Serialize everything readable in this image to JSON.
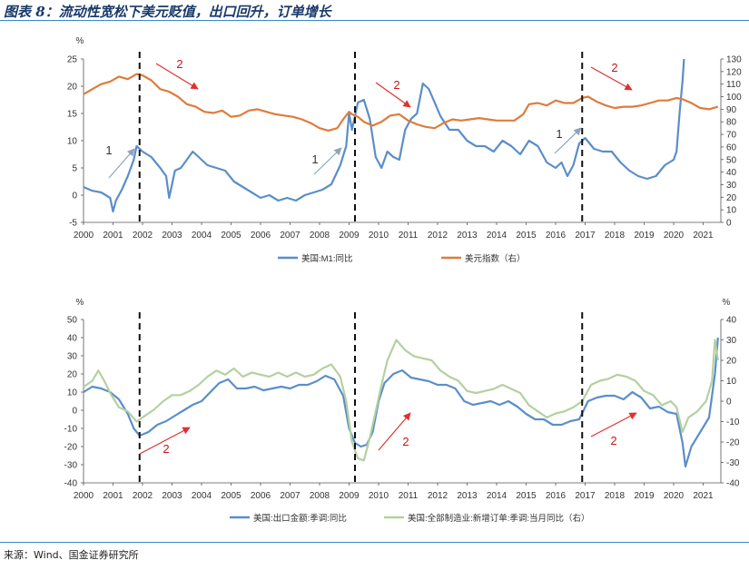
{
  "figure_title": "图表 8：流动性宽松下美元贬值，出口回升，订单增长",
  "source": "来源：Wind、国金证券研究所",
  "colors": {
    "blue": "#5b8ec9",
    "orange": "#e07b3a",
    "green": "#b5d0a0",
    "dash": "#111111",
    "arrow_gray": "#8ea3bd",
    "arrow_red": "#e03030",
    "rule": "#3a86c8"
  },
  "chart_data": [
    {
      "type": "line",
      "unit_left": "%",
      "x_ticks": [
        "2000",
        "2001",
        "2002",
        "2003",
        "2004",
        "2005",
        "2006",
        "2007",
        "2008",
        "2009",
        "2010",
        "2011",
        "2012",
        "2013",
        "2014",
        "2015",
        "2016",
        "2017",
        "2018",
        "2019",
        "2020",
        "2021"
      ],
      "xlim": [
        2000,
        2021.6
      ],
      "ylim_left": [
        -5,
        25
      ],
      "yticks_left": [
        "-5",
        "0",
        "5",
        "10",
        "15",
        "20",
        "25"
      ],
      "ylim_right": [
        0,
        130
      ],
      "yticks_right": [
        "0",
        "10",
        "20",
        "30",
        "40",
        "50",
        "60",
        "70",
        "80",
        "90",
        "100",
        "110",
        "120",
        "130"
      ],
      "series": [
        {
          "name": "美国:M1:同比",
          "axis": "left",
          "color": "#5b8ec9",
          "x": [
            2000.0,
            2000.3,
            2000.6,
            2000.9,
            2001.0,
            2001.1,
            2001.3,
            2001.5,
            2001.7,
            2001.8,
            2001.9,
            2002.0,
            2002.3,
            2002.6,
            2002.8,
            2002.9,
            2003.1,
            2003.3,
            2003.5,
            2003.7,
            2003.9,
            2004.2,
            2004.5,
            2004.8,
            2005.1,
            2005.4,
            2005.7,
            2006.0,
            2006.3,
            2006.6,
            2006.9,
            2007.2,
            2007.5,
            2007.8,
            2008.1,
            2008.4,
            2008.7,
            2008.9,
            2009.0,
            2009.1,
            2009.3,
            2009.5,
            2009.7,
            2009.9,
            2010.1,
            2010.3,
            2010.5,
            2010.7,
            2010.9,
            2011.1,
            2011.3,
            2011.5,
            2011.7,
            2011.9,
            2012.1,
            2012.4,
            2012.7,
            2013.0,
            2013.3,
            2013.6,
            2013.9,
            2014.2,
            2014.5,
            2014.8,
            2015.1,
            2015.4,
            2015.7,
            2016.0,
            2016.2,
            2016.4,
            2016.6,
            2016.8,
            2017.0,
            2017.3,
            2017.6,
            2017.9,
            2018.2,
            2018.5,
            2018.8,
            2019.1,
            2019.4,
            2019.7,
            2020.0,
            2020.1,
            2020.2,
            2020.3,
            2020.35
          ],
          "values": [
            1.5,
            0.8,
            0.5,
            -0.5,
            -3.0,
            -1.0,
            1.0,
            3.5,
            6.5,
            9.0,
            8.5,
            8.0,
            7.0,
            5.0,
            3.5,
            -0.5,
            4.5,
            5.0,
            6.5,
            8.0,
            7.0,
            5.5,
            5.0,
            4.5,
            2.5,
            1.5,
            0.5,
            -0.5,
            0.0,
            -1.0,
            -0.5,
            -1.0,
            0.0,
            0.5,
            1.0,
            2.0,
            5.5,
            9.0,
            15.0,
            12.0,
            17.0,
            17.5,
            14.0,
            7.0,
            5.0,
            8.0,
            7.0,
            6.5,
            12.0,
            14.0,
            15.0,
            20.5,
            19.5,
            17.0,
            14.5,
            12.0,
            12.0,
            10.0,
            9.0,
            9.0,
            8.0,
            10.0,
            9.0,
            7.5,
            10.0,
            9.0,
            6.0,
            5.0,
            6.0,
            3.5,
            5.5,
            9.5,
            10.5,
            8.5,
            8.0,
            8.0,
            6.0,
            4.5,
            3.5,
            3.0,
            3.5,
            5.5,
            6.5,
            8.0,
            15.0,
            21.0,
            25.0
          ]
        },
        {
          "name": "美元指数（右）",
          "axis": "right",
          "color": "#e07b3a",
          "x": [
            2000.0,
            2000.3,
            2000.6,
            2000.9,
            2001.2,
            2001.5,
            2001.8,
            2002.0,
            2002.3,
            2002.6,
            2002.9,
            2003.2,
            2003.5,
            2003.8,
            2004.1,
            2004.4,
            2004.7,
            2005.0,
            2005.3,
            2005.6,
            2005.9,
            2006.2,
            2006.5,
            2006.8,
            2007.1,
            2007.4,
            2007.7,
            2008.0,
            2008.3,
            2008.6,
            2008.8,
            2009.0,
            2009.1,
            2009.3,
            2009.5,
            2009.8,
            2010.1,
            2010.4,
            2010.7,
            2011.0,
            2011.3,
            2011.6,
            2011.9,
            2012.2,
            2012.5,
            2012.8,
            2013.1,
            2013.4,
            2013.7,
            2014.0,
            2014.3,
            2014.6,
            2014.9,
            2015.1,
            2015.4,
            2015.7,
            2016.0,
            2016.3,
            2016.6,
            2016.9,
            2017.1,
            2017.4,
            2017.7,
            2018.0,
            2018.3,
            2018.6,
            2018.9,
            2019.2,
            2019.5,
            2019.8,
            2020.1,
            2020.3,
            2020.6,
            2020.9,
            2021.2,
            2021.5
          ],
          "values": [
            102,
            106,
            110,
            112,
            116,
            114,
            118,
            117,
            113,
            106,
            104,
            100,
            94,
            92,
            88,
            87,
            89,
            84,
            85,
            89,
            90,
            88,
            86,
            85,
            84,
            82,
            79,
            75,
            73,
            75,
            82,
            88,
            86,
            84,
            80,
            77,
            80,
            85,
            86,
            81,
            78,
            76,
            75,
            79,
            82,
            81,
            82,
            83,
            82,
            81,
            81,
            81,
            86,
            94,
            95,
            93,
            97,
            95,
            95,
            99,
            100,
            96,
            93,
            91,
            92,
            92,
            93,
            95,
            97,
            97,
            99,
            98,
            95,
            91,
            90,
            92
          ]
        }
      ],
      "annotations": [
        {
          "label": "1",
          "kind": "gray-arrow"
        },
        {
          "label": "2",
          "kind": "red-arrow"
        },
        {
          "label": "1",
          "kind": "gray-arrow"
        },
        {
          "label": "2",
          "kind": "red-arrow"
        },
        {
          "label": "1",
          "kind": "gray-arrow"
        },
        {
          "label": "2",
          "kind": "red-arrow"
        }
      ],
      "vlines": [
        2001.9,
        2009.2,
        2016.9
      ],
      "legend": [
        "美国:M1:同比",
        "美元指数（右）"
      ]
    },
    {
      "type": "line",
      "unit_left": "%",
      "unit_right": "%",
      "x_ticks": [
        "2000",
        "2001",
        "2002",
        "2003",
        "2004",
        "2005",
        "2006",
        "2007",
        "2008",
        "2009",
        "2010",
        "2011",
        "2012",
        "2013",
        "2014",
        "2015",
        "2016",
        "2017",
        "2018",
        "2019",
        "2020",
        "2021"
      ],
      "xlim": [
        2000,
        2021.6
      ],
      "ylim_left": [
        -40,
        50
      ],
      "yticks_left": [
        "-40",
        "-30",
        "-20",
        "-10",
        "0",
        "10",
        "20",
        "30",
        "40",
        "50"
      ],
      "ylim_right": [
        -40,
        40
      ],
      "yticks_right": [
        "-40",
        "-30",
        "-20",
        "-10",
        "0",
        "10",
        "20",
        "30",
        "40"
      ],
      "series": [
        {
          "name": "美国:出口金额:季调:同比",
          "axis": "left",
          "color": "#5b8ec9",
          "x": [
            2000.0,
            2000.3,
            2000.6,
            2000.9,
            2001.2,
            2001.5,
            2001.7,
            2001.9,
            2002.2,
            2002.5,
            2002.8,
            2003.1,
            2003.4,
            2003.7,
            2004.0,
            2004.3,
            2004.6,
            2004.9,
            2005.2,
            2005.5,
            2005.8,
            2006.1,
            2006.4,
            2006.7,
            2007.0,
            2007.3,
            2007.6,
            2007.9,
            2008.2,
            2008.5,
            2008.8,
            2009.0,
            2009.2,
            2009.4,
            2009.6,
            2009.8,
            2010.0,
            2010.2,
            2010.5,
            2010.8,
            2011.1,
            2011.4,
            2011.7,
            2012.0,
            2012.3,
            2012.6,
            2012.9,
            2013.2,
            2013.5,
            2013.8,
            2014.1,
            2014.4,
            2014.7,
            2015.0,
            2015.3,
            2015.6,
            2015.9,
            2016.2,
            2016.5,
            2016.8,
            2017.1,
            2017.4,
            2017.7,
            2018.0,
            2018.3,
            2018.6,
            2018.9,
            2019.2,
            2019.5,
            2019.8,
            2020.1,
            2020.3,
            2020.4,
            2020.6,
            2020.9,
            2021.2,
            2021.4,
            2021.5
          ],
          "values": [
            10,
            13,
            12,
            10,
            6,
            -2,
            -10,
            -14,
            -12,
            -8,
            -6,
            -3,
            0,
            3,
            5,
            10,
            15,
            17,
            12,
            12,
            13,
            11,
            12,
            13,
            12,
            14,
            14,
            16,
            19,
            17,
            8,
            -10,
            -18,
            -20,
            -19,
            -12,
            5,
            15,
            20,
            22,
            18,
            17,
            16,
            14,
            14,
            12,
            5,
            3,
            4,
            5,
            3,
            5,
            2,
            -2,
            -5,
            -5,
            -8,
            -8,
            -6,
            -5,
            5,
            7,
            8,
            8,
            6,
            10,
            7,
            1,
            2,
            -1,
            -2,
            -18,
            -31,
            -20,
            -12,
            -4,
            20,
            40
          ]
        },
        {
          "name": "美国:全部制造业:新增订单:季调:当月同比（右）",
          "axis": "right",
          "color": "#b5d0a0",
          "x": [
            2000.0,
            2000.3,
            2000.5,
            2000.7,
            2000.9,
            2001.2,
            2001.5,
            2001.8,
            2002.1,
            2002.4,
            2002.7,
            2003.0,
            2003.3,
            2003.6,
            2003.9,
            2004.2,
            2004.5,
            2004.8,
            2005.1,
            2005.4,
            2005.7,
            2006.0,
            2006.3,
            2006.6,
            2006.9,
            2007.2,
            2007.5,
            2007.8,
            2008.1,
            2008.4,
            2008.7,
            2008.9,
            2009.1,
            2009.3,
            2009.5,
            2009.7,
            2009.9,
            2010.1,
            2010.3,
            2010.6,
            2010.9,
            2011.2,
            2011.5,
            2011.8,
            2012.1,
            2012.4,
            2012.7,
            2013.0,
            2013.3,
            2013.6,
            2013.9,
            2014.2,
            2014.5,
            2014.8,
            2015.1,
            2015.4,
            2015.7,
            2016.0,
            2016.3,
            2016.6,
            2016.9,
            2017.2,
            2017.5,
            2017.8,
            2018.1,
            2018.4,
            2018.7,
            2019.0,
            2019.3,
            2019.6,
            2019.9,
            2020.1,
            2020.3,
            2020.5,
            2020.8,
            2021.1,
            2021.3,
            2021.4,
            2021.5
          ],
          "values": [
            7,
            10,
            15,
            10,
            4,
            -3,
            -5,
            -10,
            -7,
            -4,
            0,
            3,
            3,
            5,
            8,
            12,
            15,
            13,
            16,
            12,
            14,
            13,
            12,
            14,
            12,
            14,
            12,
            13,
            16,
            18,
            12,
            0,
            -20,
            -28,
            -29,
            -18,
            -5,
            8,
            20,
            30,
            25,
            22,
            21,
            20,
            15,
            12,
            10,
            5,
            4,
            5,
            6,
            8,
            6,
            4,
            -2,
            -5,
            -8,
            -6,
            -5,
            -3,
            0,
            8,
            10,
            11,
            13,
            12,
            10,
            5,
            3,
            -2,
            0,
            -3,
            -15,
            -8,
            -5,
            0,
            10,
            30,
            20
          ]
        }
      ],
      "annotations": [
        {
          "label": "2",
          "kind": "red-arrow"
        },
        {
          "label": "2",
          "kind": "red-arrow"
        },
        {
          "label": "2",
          "kind": "red-arrow"
        }
      ],
      "vlines": [
        2001.9,
        2009.2,
        2016.9
      ],
      "legend": [
        "美国:出口金额:季调:同比",
        "美国:全部制造业:新增订单:季调:当月同比（右）"
      ]
    }
  ]
}
